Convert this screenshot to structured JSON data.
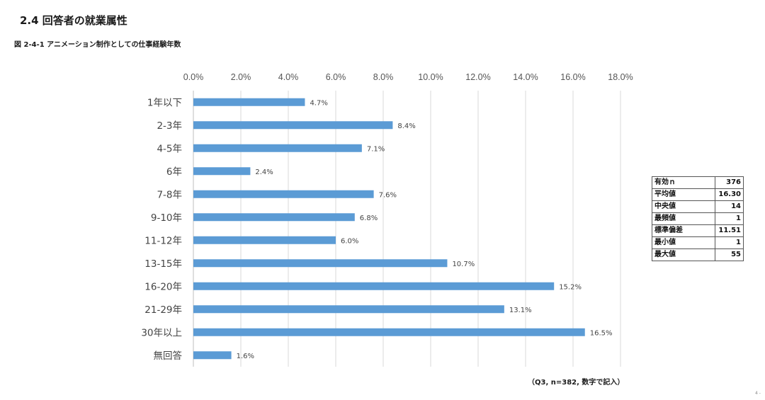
{
  "section_title": "2.4  回答者の就業属性",
  "figure_title": "図 2-4-1  アニメーション制作としての仕事経験年数",
  "chart_data": {
    "type": "bar",
    "orientation": "horizontal",
    "title": "アニメーション制作としての仕事経験年数",
    "categories": [
      "1年以下",
      "2-3年",
      "4-5年",
      "6年",
      "7-8年",
      "9-10年",
      "11-12年",
      "13-15年",
      "16-20年",
      "21-29年",
      "30年以上",
      "無回答"
    ],
    "values": [
      4.7,
      8.4,
      7.1,
      2.4,
      7.6,
      6.8,
      6.0,
      10.7,
      15.2,
      13.1,
      16.5,
      1.6
    ],
    "value_labels": [
      "4.7%",
      "8.4%",
      "7.1%",
      "2.4%",
      "7.6%",
      "6.8%",
      "6.0%",
      "10.7%",
      "15.2%",
      "13.1%",
      "16.5%",
      "1.6%"
    ],
    "xlim": [
      0,
      18
    ],
    "xticks": [
      0,
      2,
      4,
      6,
      8,
      10,
      12,
      14,
      16,
      18
    ],
    "xtick_labels": [
      "0.0%",
      "2.0%",
      "4.0%",
      "6.0%",
      "8.0%",
      "10.0%",
      "12.0%",
      "14.0%",
      "16.0%",
      "18.0%"
    ],
    "axis_position": "top",
    "grid": true,
    "bar_color": "#5b9bd5"
  },
  "stats_table": [
    {
      "label": "有効ｎ",
      "value": "376"
    },
    {
      "label": "平均値",
      "value": "16.30"
    },
    {
      "label": "中央値",
      "value": "14"
    },
    {
      "label": "最頻値",
      "value": "1"
    },
    {
      "label": "標準偏差",
      "value": "11.51"
    },
    {
      "label": "最小値",
      "value": "1"
    },
    {
      "label": "最大値",
      "value": "55"
    }
  ],
  "footnote": "（Q3,  n=382,  数字で記入）",
  "page_number": "4 -"
}
